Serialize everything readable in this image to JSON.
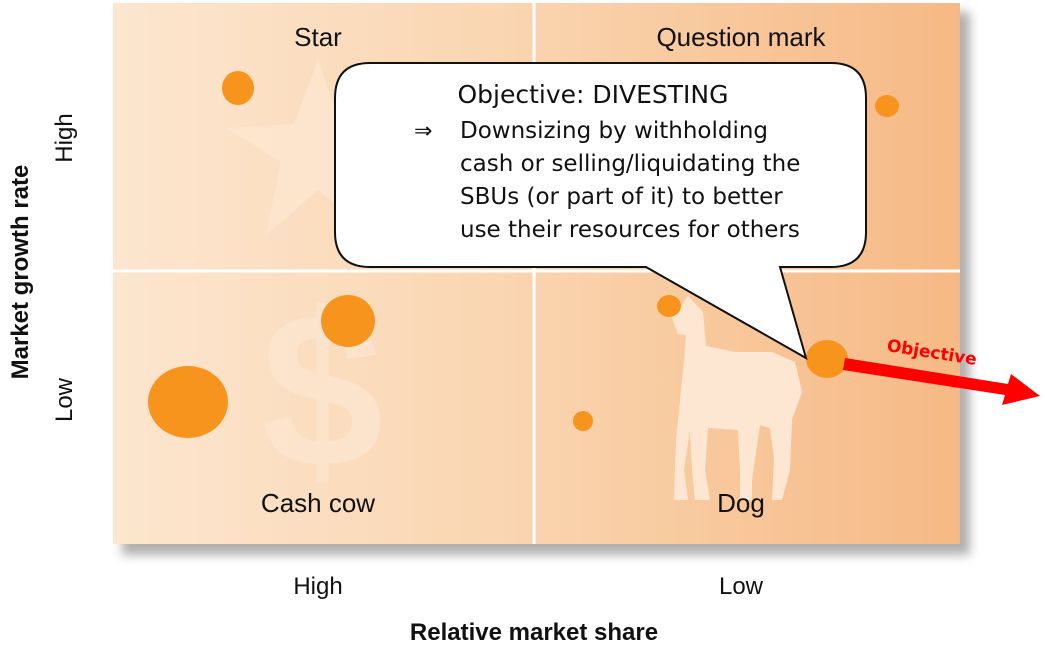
{
  "quadrants": {
    "star": "Star",
    "question_mark": "Question mark",
    "cash_cow": "Cash cow",
    "dog": "Dog"
  },
  "axes": {
    "y_title": "Market growth rate",
    "y_high": "High",
    "y_low": "Low",
    "x_title": "Relative market share",
    "x_high": "High",
    "x_low": "Low"
  },
  "callout": {
    "title": "Objective: DIVESTING",
    "arrow_symbol": "⇒",
    "lines": [
      "Downsizing by withholding",
      "cash or selling/liquidating the",
      "SBUs (or part of it) to better",
      "use their resources for others"
    ]
  },
  "objective_arrow": {
    "label": "Objective",
    "color": "#ff0000"
  },
  "colors": {
    "quadrant_light": "#fbe0c5",
    "quadrant_dark": "#f7bd88",
    "bubble": "#f7941d",
    "icon": "#fde7d2"
  },
  "icons": [
    "star-icon",
    "dollar-icon",
    "dog-icon"
  ]
}
